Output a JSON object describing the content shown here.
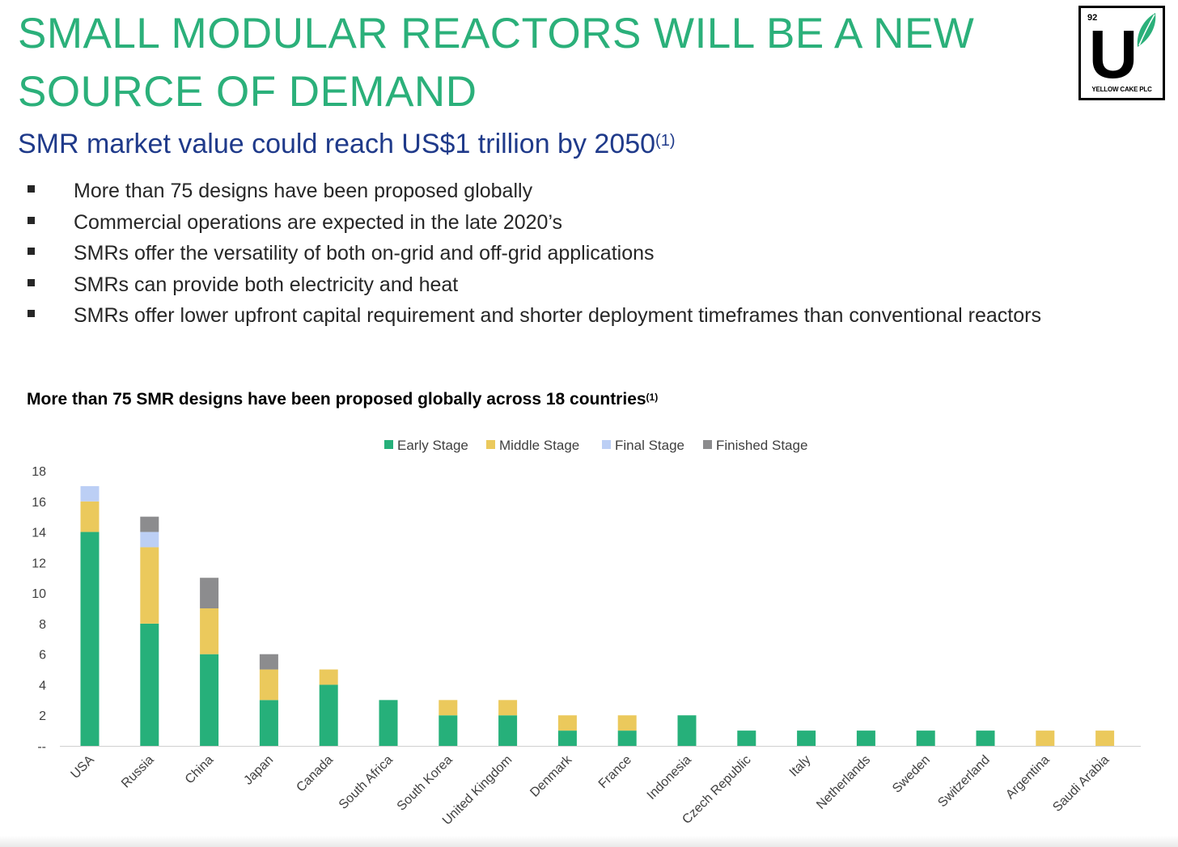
{
  "slide": {
    "title": "SMALL MODULAR REACTORS WILL BE A NEW SOURCE OF DEMAND",
    "subtitle": "SMR market value could reach US$1 trillion by 2050",
    "subtitle_footnote": "(1)",
    "bullets": [
      "More than 75 designs have been proposed globally",
      "Commercial operations are expected in the late 2020’s",
      "SMRs offer the versatility of both on-grid and off-grid applications",
      "SMRs can provide both electricity and heat",
      "SMRs offer lower upfront capital requirement and shorter deployment timeframes than conventional reactors"
    ]
  },
  "logo": {
    "number": "92",
    "letter": "U",
    "name": "YELLOW CAKE PLC",
    "icon": "leaf-icon"
  },
  "colors": {
    "title": "#2bb07a",
    "subtitle": "#1f3a8a",
    "early": "#26b07a",
    "middle": "#ebc95c",
    "final": "#bccff5",
    "finished": "#8c8c8e"
  },
  "chart_data": {
    "type": "bar",
    "stacked": true,
    "title": "More than 75 SMR designs have been proposed globally across 18 countries",
    "title_footnote": "(1)",
    "xlabel": "",
    "ylabel": "",
    "ylim": [
      0,
      18
    ],
    "yticks": [
      0,
      2,
      4,
      6,
      8,
      10,
      12,
      14,
      16,
      18
    ],
    "ytick_labels": [
      "--",
      "2",
      "4",
      "6",
      "8",
      "10",
      "12",
      "14",
      "16",
      "18"
    ],
    "grid": false,
    "legend_position": "top",
    "categories": [
      "USA",
      "Russia",
      "China",
      "Japan",
      "Canada",
      "South Africa",
      "South Korea",
      "United Kingdom",
      "Denmark",
      "France",
      "Indonesia",
      "Czech Republic",
      "Italy",
      "Netherlands",
      "Sweden",
      "Switzerland",
      "Argentina",
      "Saudi Arabia"
    ],
    "series": [
      {
        "name": "Early Stage",
        "color": "#26b07a",
        "values": [
          14,
          8,
          6,
          3,
          4,
          3,
          2,
          2,
          1,
          1,
          2,
          1,
          1,
          1,
          1,
          1,
          0,
          0
        ]
      },
      {
        "name": "Middle Stage",
        "color": "#ebc95c",
        "values": [
          2,
          5,
          3,
          2,
          1,
          0,
          1,
          1,
          1,
          1,
          0,
          0,
          0,
          0,
          0,
          0,
          1,
          1
        ]
      },
      {
        "name": "Final Stage",
        "color": "#bccff5",
        "values": [
          1,
          1,
          0,
          0,
          0,
          0,
          0,
          0,
          0,
          0,
          0,
          0,
          0,
          0,
          0,
          0,
          0,
          0
        ]
      },
      {
        "name": "Finished Stage",
        "color": "#8c8c8e",
        "values": [
          0,
          1,
          2,
          1,
          0,
          0,
          0,
          0,
          0,
          0,
          0,
          0,
          0,
          0,
          0,
          0,
          0,
          0
        ]
      }
    ]
  }
}
